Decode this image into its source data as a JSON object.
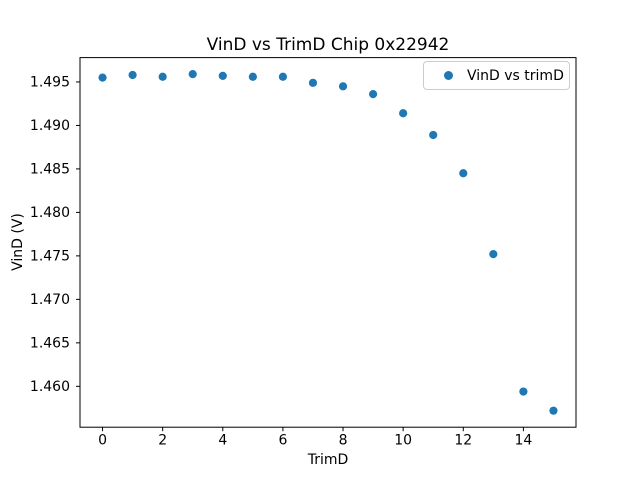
{
  "chart_data": {
    "type": "scatter",
    "title": "VinD vs TrimD Chip 0x22942",
    "xlabel": "TrimD",
    "ylabel": "VinD (V)",
    "legend_position": "upper right",
    "grid": false,
    "marker_color": "#1f77b4",
    "axis_color": "#000000",
    "series": [
      {
        "name": "VinD vs trimD",
        "color": "#1f77b4",
        "x": [
          0,
          1,
          2,
          3,
          4,
          5,
          6,
          7,
          8,
          9,
          10,
          11,
          12,
          13,
          14,
          15
        ],
        "y": [
          1.4955,
          1.4958,
          1.4956,
          1.4959,
          1.4957,
          1.4956,
          1.4956,
          1.4949,
          1.4945,
          1.4936,
          1.4914,
          1.4889,
          1.4845,
          1.4752,
          1.4594,
          1.4572
        ]
      }
    ],
    "xlim": [
      -0.75,
      15.75
    ],
    "ylim": [
      1.4553,
      1.4978
    ],
    "xticks": [
      0,
      2,
      4,
      6,
      8,
      10,
      12,
      14
    ],
    "xtick_labels": [
      "0",
      "2",
      "4",
      "6",
      "8",
      "10",
      "12",
      "14"
    ],
    "yticks": [
      1.46,
      1.465,
      1.47,
      1.475,
      1.48,
      1.485,
      1.49,
      1.495
    ],
    "ytick_labels": [
      "1.460",
      "1.465",
      "1.470",
      "1.475",
      "1.480",
      "1.485",
      "1.490",
      "1.495"
    ]
  }
}
